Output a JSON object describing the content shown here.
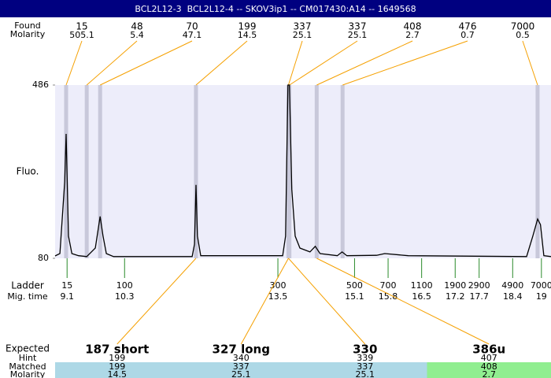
{
  "title": "BCL2L12-3  BCL2L12-4 -- SKOV3ip1 -- CM017430:A14 -- 1649568",
  "chart_data": {
    "type": "line",
    "ylabel": "Fluo.",
    "color": "#000000",
    "background": "#ededfa",
    "xlim": [
      8.85,
      19.2
    ],
    "ylim": [
      80,
      486
    ],
    "yticks": [
      486,
      80
    ],
    "x": [
      8.85,
      8.95,
      9.05,
      9.08,
      9.13,
      9.2,
      9.34,
      9.51,
      9.69,
      9.79,
      9.85,
      9.92,
      10.07,
      11.71,
      11.76,
      11.79,
      11.82,
      11.89,
      13.6,
      13.66,
      13.71,
      13.74,
      13.79,
      13.86,
      13.96,
      14.17,
      14.28,
      14.38,
      14.74,
      14.84,
      14.94,
      15.56,
      15.73,
      16.22,
      18.69,
      18.82,
      18.92,
      18.98,
      19.05,
      19.2
    ],
    "values": [
      85.5,
      91,
      260,
      371.5,
      132,
      91,
      86,
      84,
      104,
      178,
      132,
      91,
      84,
      84,
      113,
      252,
      132,
      86,
      86,
      132,
      486,
      486,
      242,
      132,
      104,
      95,
      108,
      91,
      86,
      95,
      86,
      87,
      91,
      86,
      84,
      132,
      172,
      159,
      86,
      84
    ]
  },
  "peaks": {
    "label": "Found",
    "molarity_label": "Molarity",
    "band_color": "#c8c8da",
    "line_color": "#f5a000",
    "items": [
      {
        "size": 15,
        "molarity": 505.1,
        "time": 9.08
      },
      {
        "size": 48,
        "molarity": 5.4,
        "time": 9.51
      },
      {
        "size": 70,
        "molarity": 47.1,
        "time": 9.79
      },
      {
        "size": 199,
        "molarity": 14.5,
        "time": 11.79
      },
      {
        "size": 337,
        "molarity": 25.1,
        "time": 13.72
      },
      {
        "size": 337,
        "molarity": 25.1,
        "time": 13.74
      },
      {
        "size": 408,
        "molarity": 2.7,
        "time": 14.31
      },
      {
        "size": 476,
        "molarity": 0.7,
        "time": 14.85
      },
      {
        "size": 7000,
        "molarity": 0.5,
        "time": 18.92
      }
    ]
  },
  "ladder": {
    "label": "Ladder",
    "time_label": "Mig. time",
    "color": "#2a8a2a",
    "sizes": [
      15,
      100,
      300,
      500,
      700,
      1100,
      1900,
      2900,
      4900,
      7000
    ],
    "times": [
      9.1,
      10.3,
      13.5,
      15.1,
      15.8,
      16.5,
      17.2,
      17.7,
      18.4,
      19
    ]
  },
  "expected": {
    "label": "Expected",
    "hint_label": "Hint",
    "matched_label": "Matched",
    "molarity_label": "Molarity",
    "columns": [
      {
        "name": "187 short",
        "hint": 199,
        "matched": 199,
        "molarity": 14.5,
        "color": "#add8e6"
      },
      {
        "name": "327 long",
        "hint": 340,
        "matched": 337,
        "molarity": 25.1,
        "color": "#add8e6"
      },
      {
        "name": "330",
        "hint": 339,
        "matched": 337,
        "molarity": 25.1,
        "color": "#add8e6"
      },
      {
        "name": "386u",
        "hint": 407,
        "matched": 408,
        "molarity": 2.7,
        "color": "#90ee90"
      }
    ]
  }
}
